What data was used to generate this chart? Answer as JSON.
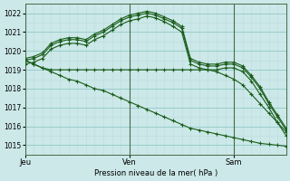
{
  "title": "Pression niveau de la mer( hPa )",
  "bg_color": "#cce8e8",
  "grid_color_major": "#99cccc",
  "grid_color_minor": "#bbdddd",
  "line_color": "#1a5c1a",
  "x_ticks_labels": [
    "Jeu",
    "Ven",
    "Sam"
  ],
  "x_ticks_pos": [
    0,
    24,
    48
  ],
  "x_vlines_pos": [
    0,
    24,
    48
  ],
  "ylim": [
    1014.5,
    1022.5
  ],
  "yticks": [
    1015,
    1016,
    1017,
    1018,
    1019,
    1020,
    1021,
    1022
  ],
  "total_hours": 60,
  "series": [
    {
      "x": [
        0,
        2,
        4,
        6,
        8,
        10,
        12,
        14,
        16,
        18,
        20,
        22,
        24,
        26,
        28,
        30,
        32,
        34,
        36,
        38,
        40,
        42,
        44,
        46,
        48,
        50,
        52,
        54,
        56,
        58,
        60
      ],
      "y": [
        1019.5,
        1019.6,
        1019.8,
        1020.3,
        1020.5,
        1020.6,
        1020.6,
        1020.5,
        1020.8,
        1021.0,
        1021.3,
        1021.6,
        1021.8,
        1021.9,
        1022.0,
        1021.9,
        1021.7,
        1021.5,
        1021.2,
        1019.5,
        1019.3,
        1019.2,
        1019.2,
        1019.3,
        1019.3,
        1019.1,
        1018.6,
        1018.0,
        1017.2,
        1016.5,
        1015.8
      ]
    },
    {
      "x": [
        0,
        2,
        4,
        6,
        8,
        10,
        12,
        14,
        16,
        18,
        20,
        22,
        24,
        26,
        28,
        30,
        32,
        34,
        36,
        38,
        40,
        42,
        44,
        46,
        48,
        50,
        52,
        54,
        56,
        58,
        60
      ],
      "y": [
        1019.3,
        1019.4,
        1019.6,
        1020.1,
        1020.3,
        1020.4,
        1020.4,
        1020.3,
        1020.6,
        1020.8,
        1021.1,
        1021.4,
        1021.6,
        1021.7,
        1021.85,
        1021.75,
        1021.55,
        1021.3,
        1021.0,
        1019.3,
        1019.1,
        1019.0,
        1019.0,
        1019.1,
        1019.1,
        1018.9,
        1018.4,
        1017.7,
        1017.0,
        1016.2,
        1015.5
      ]
    },
    {
      "x": [
        0,
        2,
        4,
        6,
        8,
        10,
        12,
        14,
        16,
        18,
        20,
        22,
        24,
        26,
        28,
        30,
        32,
        34,
        36,
        38,
        40,
        42,
        44,
        46,
        48,
        50,
        52,
        54,
        56,
        58,
        60
      ],
      "y": [
        1019.6,
        1019.7,
        1019.9,
        1020.4,
        1020.6,
        1020.7,
        1020.7,
        1020.6,
        1020.9,
        1021.1,
        1021.4,
        1021.7,
        1021.9,
        1022.0,
        1022.1,
        1022.0,
        1021.8,
        1021.6,
        1021.3,
        1019.6,
        1019.4,
        1019.3,
        1019.3,
        1019.4,
        1019.4,
        1019.2,
        1018.7,
        1018.1,
        1017.3,
        1016.6,
        1015.9
      ]
    },
    {
      "x": [
        0,
        2,
        4,
        6,
        8,
        10,
        12,
        14,
        16,
        18,
        20,
        22,
        24,
        26,
        28,
        30,
        32,
        34,
        36,
        38,
        40,
        42,
        44,
        46,
        48,
        50,
        52,
        54,
        56,
        58,
        60
      ],
      "y": [
        1019.5,
        1019.3,
        1019.1,
        1019.0,
        1019.0,
        1019.0,
        1019.0,
        1019.0,
        1019.0,
        1019.0,
        1019.0,
        1019.0,
        1019.0,
        1019.0,
        1019.0,
        1019.0,
        1019.0,
        1019.0,
        1019.0,
        1019.0,
        1019.0,
        1019.0,
        1018.9,
        1018.7,
        1018.5,
        1018.2,
        1017.7,
        1017.2,
        1016.7,
        1016.2,
        1015.7
      ]
    },
    {
      "x": [
        0,
        2,
        4,
        6,
        8,
        10,
        12,
        14,
        16,
        18,
        20,
        22,
        24,
        26,
        28,
        30,
        32,
        34,
        36,
        38,
        40,
        42,
        44,
        46,
        48,
        50,
        52,
        54,
        56,
        58,
        60
      ],
      "y": [
        1019.5,
        1019.3,
        1019.1,
        1018.9,
        1018.7,
        1018.5,
        1018.4,
        1018.2,
        1018.0,
        1017.9,
        1017.7,
        1017.5,
        1017.3,
        1017.1,
        1016.9,
        1016.7,
        1016.5,
        1016.3,
        1016.1,
        1015.9,
        1015.8,
        1015.7,
        1015.6,
        1015.5,
        1015.4,
        1015.3,
        1015.2,
        1015.1,
        1015.05,
        1015.0,
        1014.95
      ]
    }
  ]
}
